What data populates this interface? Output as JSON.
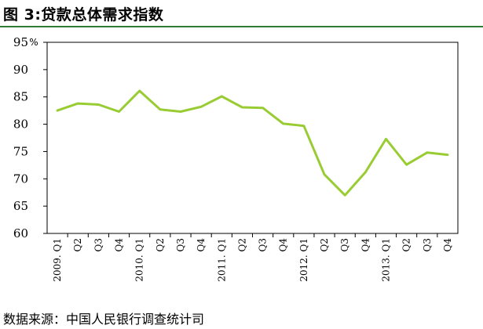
{
  "title": "图 3:贷款总体需求指数",
  "source": "数据来源：中国人民银行调查统计司",
  "colors": {
    "series": "#99cc33",
    "header_rule": "#2e7d32",
    "axis": "#000000"
  },
  "chart_data": {
    "type": "line",
    "title": "图 3:贷款总体需求指数",
    "unit": "%",
    "ylim": [
      60,
      95
    ],
    "yticks": [
      60,
      65,
      70,
      75,
      80,
      85,
      90,
      95
    ],
    "grid": false,
    "legend": "none",
    "categories": [
      "2009. Q1",
      "Q2",
      "Q3",
      "Q4",
      "2010. Q1",
      "Q2",
      "Q3",
      "Q4",
      "2011. Q1",
      "Q2",
      "Q3",
      "Q4",
      "2012. Q1",
      "Q2",
      "Q3",
      "Q4",
      "2013. Q1",
      "Q2",
      "Q3",
      "Q4"
    ],
    "series": [
      {
        "values": [
          82.5,
          83.8,
          83.6,
          82.3,
          86.1,
          82.7,
          82.3,
          83.2,
          85.1,
          83.1,
          83.0,
          80.1,
          79.7,
          70.8,
          67.0,
          71.2,
          77.3,
          72.6,
          74.8,
          74.4
        ]
      }
    ]
  }
}
